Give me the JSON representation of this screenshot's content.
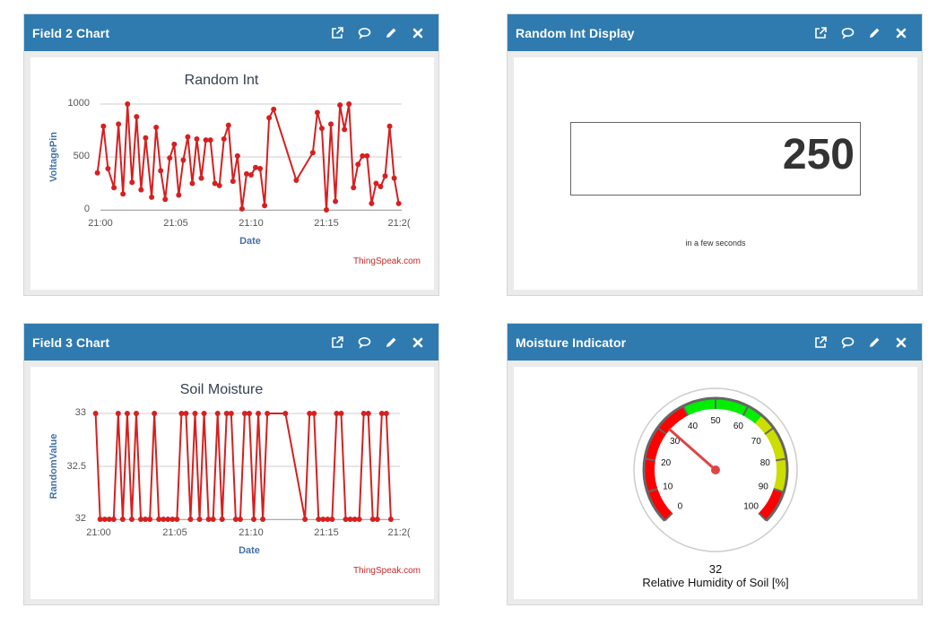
{
  "widgets": {
    "field2": {
      "title": "Field 2 Chart",
      "chart": {
        "title": "Random Int",
        "xlabel": "Date",
        "ylabel": "VoltagePin",
        "credit": "ThingSpeak.com",
        "ytick_labels": [
          "1000",
          "500",
          "0"
        ],
        "xtick_labels": [
          "21:00",
          "21:05",
          "21:10",
          "21:15",
          "21:2("
        ]
      }
    },
    "display": {
      "title": "Random Int Display",
      "value": "250",
      "status": "in a few seconds"
    },
    "field3": {
      "title": "Field 3 Chart",
      "chart": {
        "title": "Soil Moisture",
        "xlabel": "Date",
        "ylabel": "RandomValue",
        "credit": "ThingSpeak.com",
        "ytick_labels": [
          "33",
          "32.5",
          "32"
        ],
        "xtick_labels": [
          "21:00",
          "21:05",
          "21:10",
          "21:15",
          "21:2("
        ]
      }
    },
    "moisture": {
      "title": "Moisture Indicator",
      "value": "32",
      "label": "Relative Humidity of Soil [%]",
      "gauge": {
        "min": 0,
        "max": 100,
        "value": 32,
        "tick_labels": [
          "0",
          "10",
          "20",
          "30",
          "40",
          "50",
          "60",
          "70",
          "80",
          "90",
          "100"
        ],
        "bands": [
          {
            "from": 0,
            "to": 40,
            "color": "#ff0000"
          },
          {
            "from": 40,
            "to": 65,
            "color": "#00ee00"
          },
          {
            "from": 65,
            "to": 90,
            "color": "#ccdd00"
          },
          {
            "from": 90,
            "to": 100,
            "color": "#ff0000"
          }
        ],
        "needle_color": "#dd4444"
      }
    }
  },
  "icons": {
    "popout": "external-link-icon",
    "comment": "comment-icon",
    "edit": "pencil-icon",
    "close": "close-icon"
  },
  "colors": {
    "header": "#2f7bb0",
    "series": "#d62020",
    "grid": "#cccccc",
    "axis_title": "#4572a7"
  },
  "chart_data": [
    {
      "type": "line",
      "title": "Random Int",
      "xlabel": "Date",
      "ylabel": "VoltagePin",
      "ylim": [
        0,
        1000
      ],
      "xlim": [
        "21:00",
        "21:20"
      ],
      "grid": true,
      "series": [
        {
          "name": "",
          "points": [
            [
              "20:59:48",
              350
            ],
            [
              "21:00:12",
              790
            ],
            [
              "21:00:30",
              390
            ],
            [
              "21:00:54",
              210
            ],
            [
              "21:01:12",
              810
            ],
            [
              "21:01:30",
              150
            ],
            [
              "21:01:48",
              1000
            ],
            [
              "21:02:06",
              260
            ],
            [
              "21:02:24",
              880
            ],
            [
              "21:02:42",
              190
            ],
            [
              "21:03:00",
              680
            ],
            [
              "21:03:24",
              120
            ],
            [
              "21:03:42",
              780
            ],
            [
              "21:04:00",
              370
            ],
            [
              "21:04:18",
              100
            ],
            [
              "21:04:36",
              490
            ],
            [
              "21:04:54",
              620
            ],
            [
              "21:05:12",
              140
            ],
            [
              "21:05:30",
              470
            ],
            [
              "21:05:48",
              690
            ],
            [
              "21:06:06",
              250
            ],
            [
              "21:06:24",
              670
            ],
            [
              "21:06:42",
              300
            ],
            [
              "21:07:00",
              660
            ],
            [
              "21:07:18",
              660
            ],
            [
              "21:07:36",
              250
            ],
            [
              "21:07:54",
              230
            ],
            [
              "21:08:12",
              670
            ],
            [
              "21:08:30",
              800
            ],
            [
              "21:08:48",
              270
            ],
            [
              "21:09:06",
              510
            ],
            [
              "21:09:24",
              10
            ],
            [
              "21:09:42",
              340
            ],
            [
              "21:10:00",
              330
            ],
            [
              "21:10:18",
              400
            ],
            [
              "21:10:36",
              390
            ],
            [
              "21:10:54",
              40
            ],
            [
              "21:11:12",
              870
            ],
            [
              "21:11:30",
              950
            ],
            [
              "21:13:00",
              280
            ],
            [
              "21:14:06",
              540
            ],
            [
              "21:14:24",
              920
            ],
            [
              "21:14:42",
              770
            ],
            [
              "21:15:00",
              0
            ],
            [
              "21:15:18",
              810
            ],
            [
              "21:15:36",
              80
            ],
            [
              "21:15:54",
              990
            ],
            [
              "21:16:12",
              760
            ],
            [
              "21:16:30",
              1000
            ],
            [
              "21:16:48",
              210
            ],
            [
              "21:17:06",
              430
            ],
            [
              "21:17:24",
              510
            ],
            [
              "21:17:42",
              510
            ],
            [
              "21:18:00",
              60
            ],
            [
              "21:18:18",
              250
            ],
            [
              "21:18:36",
              220
            ],
            [
              "21:18:54",
              320
            ],
            [
              "21:19:12",
              790
            ],
            [
              "21:19:30",
              300
            ],
            [
              "21:19:48",
              60
            ]
          ]
        }
      ]
    },
    {
      "type": "line",
      "title": "Soil Moisture",
      "xlabel": "Date",
      "ylabel": "RandomValue",
      "ylim": [
        32,
        33
      ],
      "xlim": [
        "21:00",
        "21:20"
      ],
      "grid": true,
      "series": [
        {
          "name": "",
          "points": [
            [
              "20:59:48",
              33
            ],
            [
              "21:00:06",
              32
            ],
            [
              "21:00:24",
              32
            ],
            [
              "21:00:42",
              32
            ],
            [
              "21:01:00",
              32
            ],
            [
              "21:01:18",
              33
            ],
            [
              "21:01:36",
              32
            ],
            [
              "21:01:54",
              33
            ],
            [
              "21:02:12",
              32
            ],
            [
              "21:02:30",
              33
            ],
            [
              "21:02:48",
              32
            ],
            [
              "21:03:06",
              32
            ],
            [
              "21:03:24",
              32
            ],
            [
              "21:03:42",
              33
            ],
            [
              "21:04:00",
              32
            ],
            [
              "21:04:18",
              32
            ],
            [
              "21:04:36",
              32
            ],
            [
              "21:04:54",
              32
            ],
            [
              "21:05:12",
              32
            ],
            [
              "21:05:30",
              33
            ],
            [
              "21:05:48",
              33
            ],
            [
              "21:06:06",
              32
            ],
            [
              "21:06:24",
              33
            ],
            [
              "21:06:42",
              32
            ],
            [
              "21:07:00",
              33
            ],
            [
              "21:07:18",
              32
            ],
            [
              "21:07:36",
              32
            ],
            [
              "21:07:54",
              33
            ],
            [
              "21:08:12",
              32
            ],
            [
              "21:08:30",
              33
            ],
            [
              "21:08:48",
              33
            ],
            [
              "21:09:06",
              32
            ],
            [
              "21:09:24",
              32
            ],
            [
              "21:09:42",
              33
            ],
            [
              "21:10:00",
              33
            ],
            [
              "21:10:18",
              32
            ],
            [
              "21:10:36",
              33
            ],
            [
              "21:10:54",
              32
            ],
            [
              "21:11:12",
              33
            ],
            [
              "21:12:24",
              33
            ],
            [
              "21:13:42",
              32
            ],
            [
              "21:14:00",
              33
            ],
            [
              "21:14:18",
              33
            ],
            [
              "21:14:36",
              32
            ],
            [
              "21:14:54",
              32
            ],
            [
              "21:15:12",
              32
            ],
            [
              "21:15:30",
              32
            ],
            [
              "21:15:48",
              33
            ],
            [
              "21:16:06",
              33
            ],
            [
              "21:16:24",
              32
            ],
            [
              "21:16:42",
              32
            ],
            [
              "21:17:00",
              32
            ],
            [
              "21:17:18",
              32
            ],
            [
              "21:17:36",
              33
            ],
            [
              "21:17:54",
              33
            ],
            [
              "21:18:12",
              32
            ],
            [
              "21:18:30",
              32
            ],
            [
              "21:18:48",
              33
            ],
            [
              "21:19:06",
              33
            ],
            [
              "21:19:24",
              32
            ]
          ]
        }
      ]
    }
  ]
}
